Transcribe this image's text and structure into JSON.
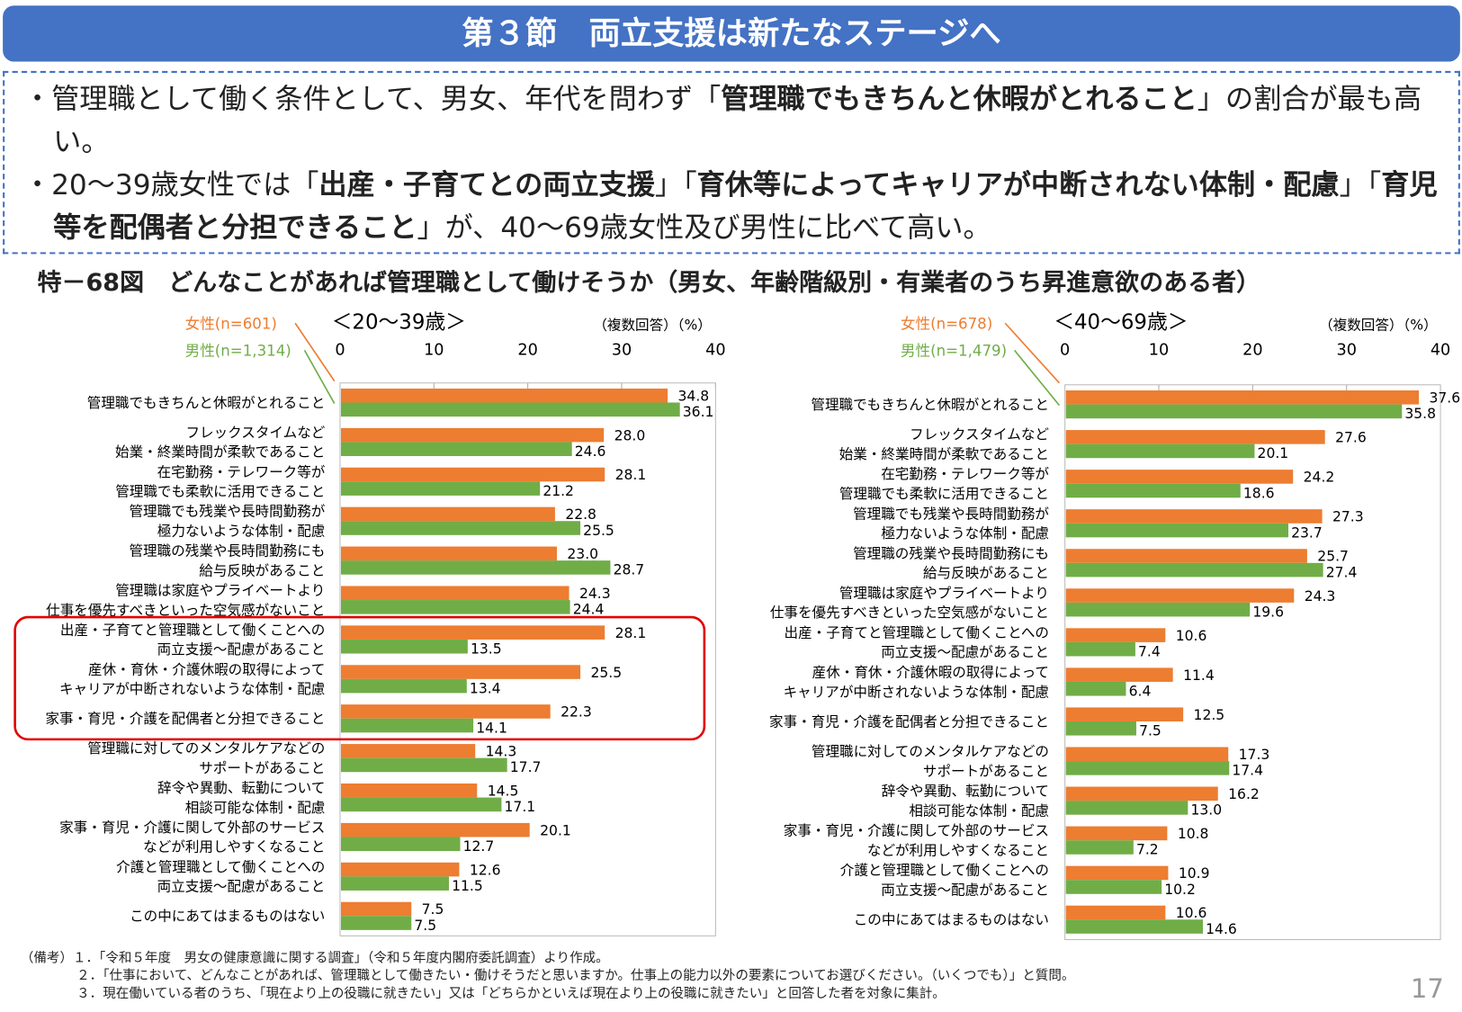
{
  "header": {
    "title": "第３節　両立支援は新たなステージへ"
  },
  "summary": {
    "bullet1": [
      {
        "t": "・管理職として働く条件として、男女、年代を問わず「"
      },
      {
        "t": "管理職でもきちんと休暇がとれること",
        "b": true
      },
      {
        "t": "」の割合が最も高い。"
      }
    ],
    "bullet2": [
      {
        "t": "・20～39歳女性では「"
      },
      {
        "t": "出産・子育てとの両立支援",
        "b": true
      },
      {
        "t": "」「"
      },
      {
        "t": "育休等によってキャリアが中断されない体制・配慮",
        "b": true
      },
      {
        "t": "」「"
      },
      {
        "t": "育児等を配偶者と分担できること",
        "b": true
      },
      {
        "t": "」が、40～69歳女性及び男性に比べて高い。"
      }
    ]
  },
  "chart_title": "特－68図　どんなことがあれば管理職として働けそうか（男女、年齢階級別・有業者のうち昇進意欲のある者）",
  "colors": {
    "female": "#ed7d31",
    "male": "#70ad47",
    "highlight": "#e00000",
    "header": "#4472c4"
  },
  "chart_data": [
    {
      "type": "bar",
      "orientation": "horizontal",
      "title": "＜20～39歳＞",
      "unit_note": "（複数回答）（%）",
      "xlim": [
        0,
        40
      ],
      "ticks": [
        "0",
        "10",
        "20",
        "30",
        "40"
      ],
      "series": [
        {
          "name": "女性(n=601)",
          "values": [
            34.8,
            28.0,
            28.1,
            22.8,
            23.0,
            24.3,
            28.1,
            25.5,
            22.3,
            14.3,
            14.5,
            20.1,
            12.6,
            7.5
          ]
        },
        {
          "name": "男性(n=1,314)",
          "values": [
            36.1,
            24.6,
            21.2,
            25.5,
            28.7,
            24.4,
            13.5,
            13.4,
            14.1,
            17.7,
            17.1,
            12.7,
            11.5,
            7.5
          ]
        }
      ],
      "highlight_rows": [
        6,
        7,
        8
      ]
    },
    {
      "type": "bar",
      "orientation": "horizontal",
      "title": "＜40～69歳＞",
      "unit_note": "（複数回答）（%）",
      "xlim": [
        0,
        40
      ],
      "ticks": [
        "0",
        "10",
        "20",
        "30",
        "40"
      ],
      "series": [
        {
          "name": "女性(n=678)",
          "values": [
            37.6,
            27.6,
            24.2,
            27.3,
            25.7,
            24.3,
            10.6,
            11.4,
            12.5,
            17.3,
            16.2,
            10.8,
            10.9,
            10.6
          ]
        },
        {
          "name": "男性(n=1,479)",
          "values": [
            35.8,
            20.1,
            18.6,
            23.7,
            27.4,
            19.6,
            7.4,
            6.4,
            7.5,
            17.4,
            13.0,
            7.2,
            10.2,
            14.6
          ]
        }
      ]
    }
  ],
  "categories": [
    [
      "管理職でもきちんと休暇がとれること"
    ],
    [
      "フレックスタイムなど",
      "始業・終業時間が柔軟であること"
    ],
    [
      "在宅勤務・テレワーク等が",
      "管理職でも柔軟に活用できること"
    ],
    [
      "管理職でも残業や長時間勤務が",
      "極力ないような体制・配慮"
    ],
    [
      "管理職の残業や長時間勤務にも",
      "給与反映があること"
    ],
    [
      "管理職は家庭やプライベートより",
      "仕事を優先すべきといった空気感がないこと"
    ],
    [
      "出産・子育てと管理職として働くことへの",
      "両立支援～配慮があること"
    ],
    [
      "産休・育休・介護休暇の取得によって",
      "キャリアが中断されないような体制・配慮"
    ],
    [
      "家事・育児・介護を配偶者と分担できること"
    ],
    [
      "管理職に対してのメンタルケアなどの",
      "サポートがあること"
    ],
    [
      "辞令や異動、転勤について",
      "相談可能な体制・配慮"
    ],
    [
      "家事・育児・介護に関して外部のサービス",
      "などが利用しやすくなること"
    ],
    [
      "介護と管理職として働くことへの",
      "両立支援～配慮があること"
    ],
    [
      "この中にあてはまるものはない"
    ]
  ],
  "notes": [
    "（備考）１．「令和５年度　男女の健康意識に関する調査」（令和５年度内閣府委託調査）より作成。",
    "２．「仕事において、どんなことがあれば、管理職として働きたい・働けそうだと思いますか。仕事上の能力以外の要素についてお選びください。（いくつでも）」と質問。",
    "３．現在働いている者のうち、「現在より上の役職に就きたい」又は「どちらかといえば現在より上の役職に就きたい」と回答した者を対象に集計。"
  ],
  "page_number": "17"
}
